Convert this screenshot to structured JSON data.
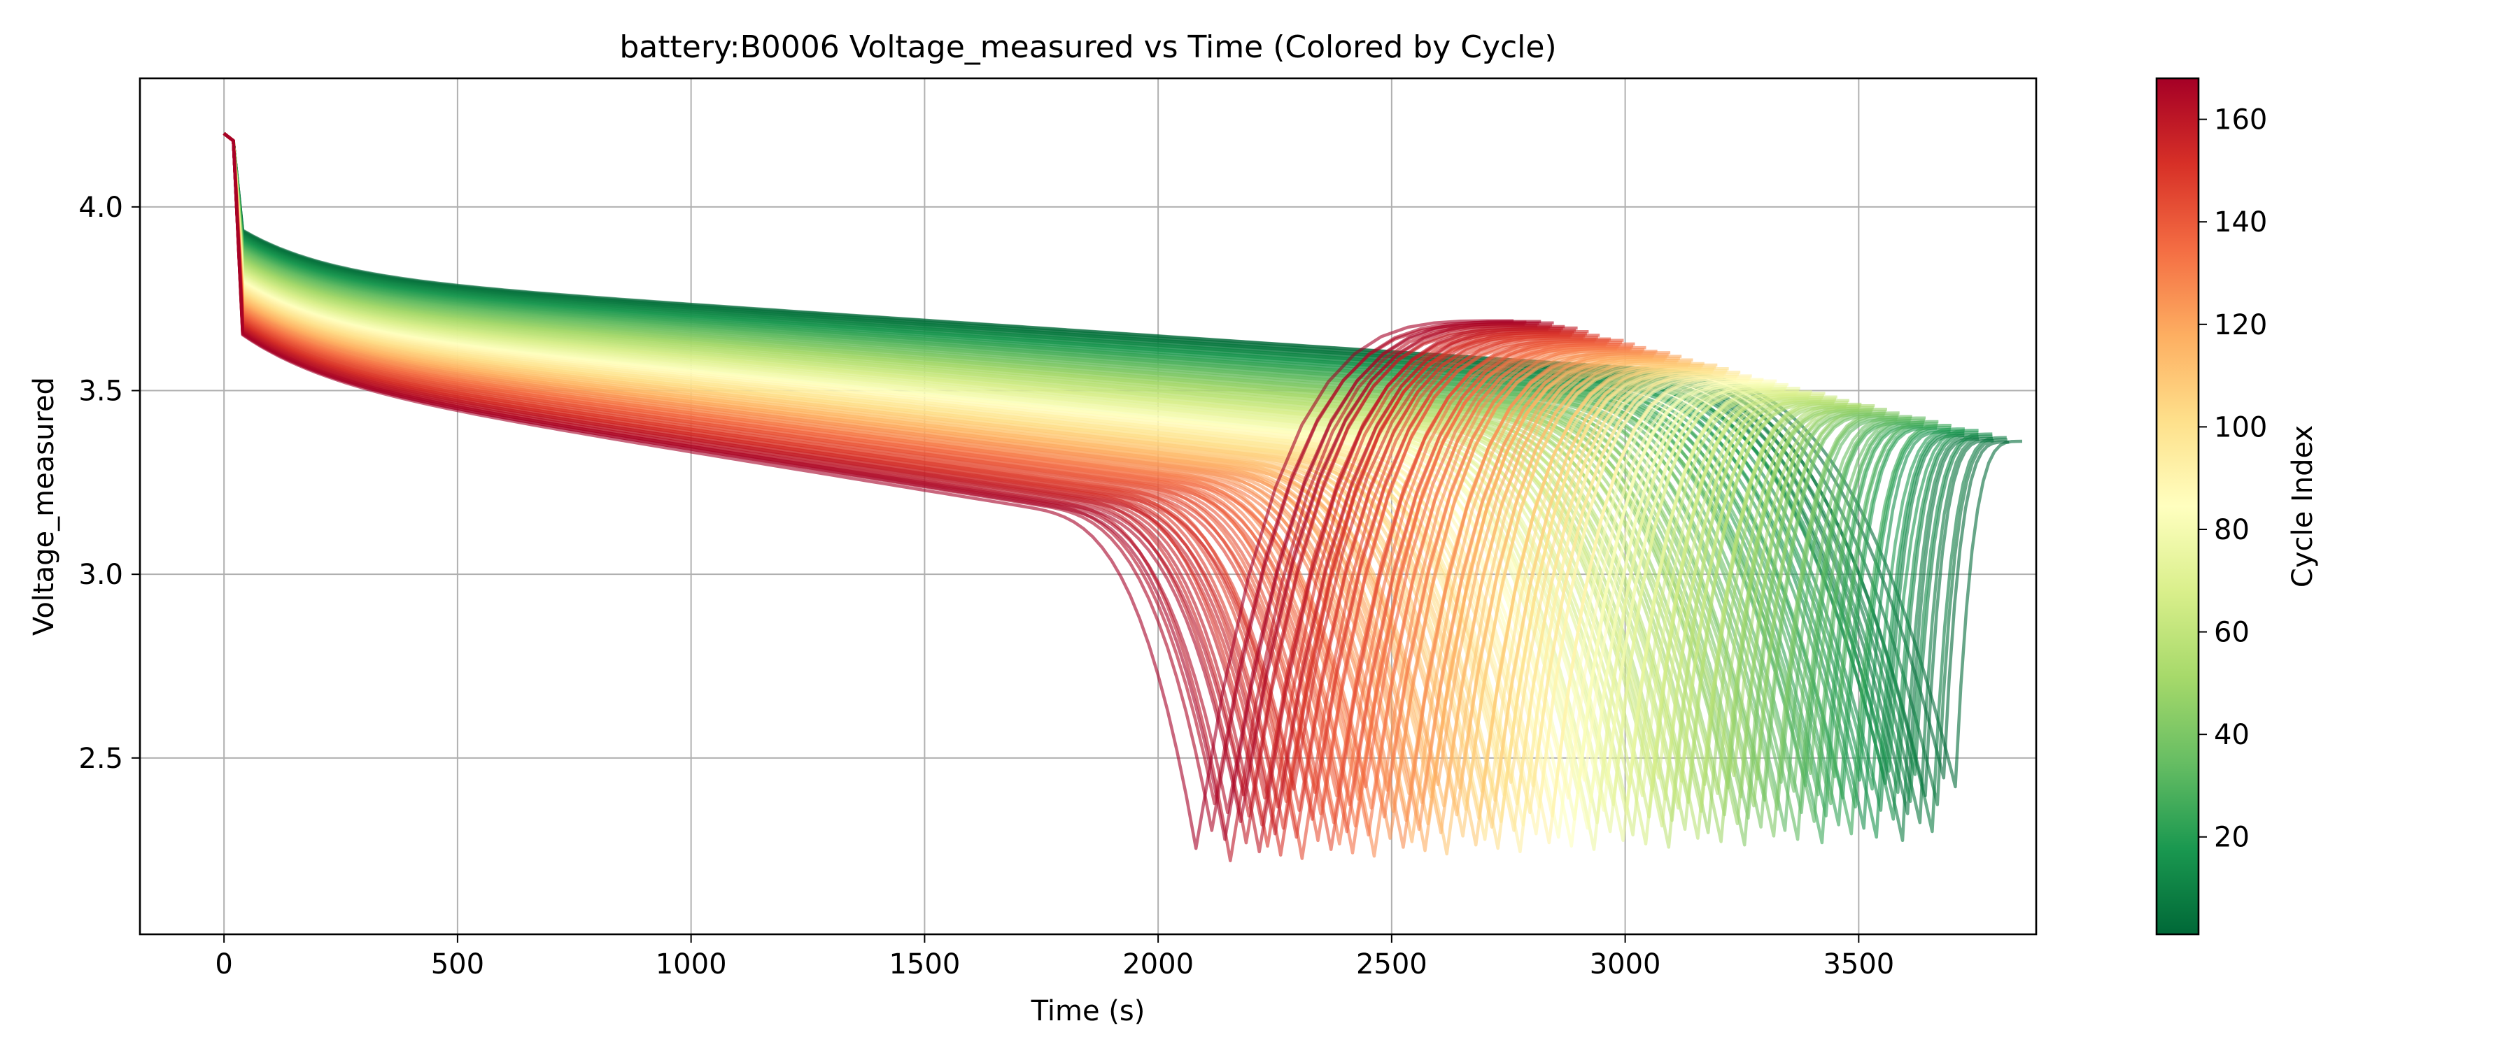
{
  "chart_data": {
    "type": "line",
    "title": "battery:B0006 Voltage_measured vs Time (Colored by Cycle)",
    "xlabel": "Time (s)",
    "ylabel": "Voltage_measured",
    "xlim": [
      -180,
      3880
    ],
    "ylim": [
      2.02,
      4.35
    ],
    "xticks": [
      0,
      500,
      1000,
      1500,
      2000,
      2500,
      3000,
      3500
    ],
    "xtick_labels": [
      "0",
      "500",
      "1000",
      "1500",
      "2000",
      "2500",
      "3000",
      "3500"
    ],
    "yticks": [
      2.5,
      3.0,
      3.5,
      4.0
    ],
    "ytick_labels": [
      "2.5",
      "3.0",
      "3.5",
      "4.0"
    ],
    "grid": true,
    "colormap": "RdYlGn_r",
    "colormap_stops": [
      "#006837",
      "#1a9850",
      "#66bd63",
      "#a6d96a",
      "#d9ef8b",
      "#ffffbf",
      "#fee08b",
      "#fdae61",
      "#f46d43",
      "#d73027",
      "#a50026"
    ],
    "series_summary": {
      "cycle_count": 168,
      "initial_voltage_approx": 4.18,
      "first_cycle": {
        "cycle": 1,
        "end_time": 3690,
        "voltage_at_500": 3.82,
        "voltage_at_3000": 3.43,
        "final_voltage": 2.47
      },
      "last_cycle": {
        "cycle": 168,
        "end_time": 2120,
        "voltage_at_500": 3.54,
        "voltage_at_2000": 3.0,
        "final_voltage": 2.41,
        "recovery_peak_voltage": 3.69,
        "recovery_end_time": 2800
      }
    },
    "colorbar": {
      "label": "Cycle Index",
      "min": 1,
      "max": 168,
      "ticks": [
        20,
        40,
        60,
        80,
        100,
        120,
        140,
        160
      ],
      "tick_labels": [
        "20",
        "40",
        "60",
        "80",
        "100",
        "120",
        "140",
        "160"
      ]
    }
  }
}
